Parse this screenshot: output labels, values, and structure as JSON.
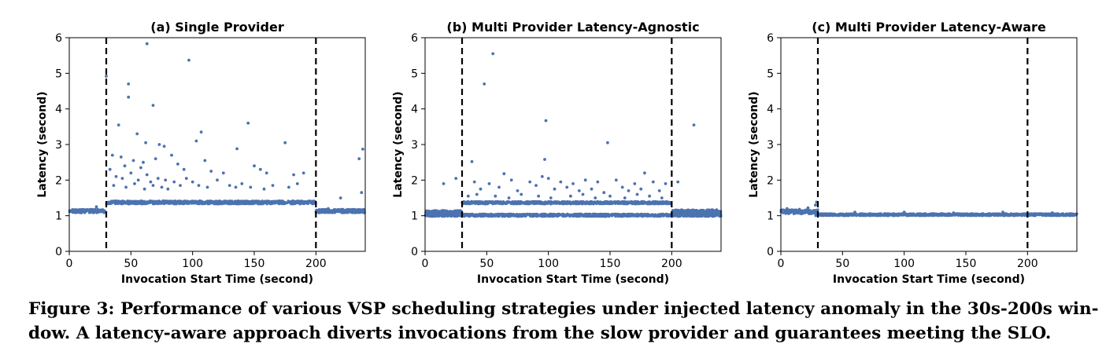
{
  "figure": {
    "caption_line1": "Figure 3: Performance of various VSP scheduling strategies under injected latency anomaly in the 30s-200s win-",
    "caption_line2": "dow. A latency-aware approach diverts invocations from the slow provider and guarantees meeting the SLO."
  },
  "colors": {
    "points": "#4c72b0",
    "marker_lines": "#000000"
  },
  "chart_data": [
    {
      "type": "scatter",
      "title": "(a) Single Provider",
      "xlabel": "Invocation Start Time (second)",
      "ylabel": "Latency (second)",
      "xlim": [
        0,
        240
      ],
      "ylim": [
        0,
        6
      ],
      "xticks": [
        0,
        50,
        100,
        150,
        200
      ],
      "yticks": [
        0,
        1,
        2,
        3,
        4,
        5,
        6
      ],
      "grid": false,
      "vertical_lines": [
        30,
        200
      ],
      "bands": [
        {
          "x": [
            0,
            29
          ],
          "y": [
            1.08,
            1.18
          ]
        },
        {
          "x": [
            30,
            200
          ],
          "y": [
            1.33,
            1.42
          ]
        },
        {
          "x": [
            200,
            240
          ],
          "y": [
            1.08,
            1.18
          ]
        }
      ],
      "points": [
        [
          63,
          5.83
        ],
        [
          97,
          5.37
        ],
        [
          30,
          4.92
        ],
        [
          48,
          4.7
        ],
        [
          48,
          4.33
        ],
        [
          68,
          4.1
        ],
        [
          40,
          3.55
        ],
        [
          107,
          3.35
        ],
        [
          145,
          3.6
        ],
        [
          55,
          3.3
        ],
        [
          103,
          3.1
        ],
        [
          73,
          3.0
        ],
        [
          62,
          3.05
        ],
        [
          77,
          2.95
        ],
        [
          136,
          2.88
        ],
        [
          175,
          3.05
        ],
        [
          238,
          2.87
        ],
        [
          35,
          2.7
        ],
        [
          42,
          2.65
        ],
        [
          52,
          2.55
        ],
        [
          70,
          2.6
        ],
        [
          83,
          2.7
        ],
        [
          110,
          2.55
        ],
        [
          60,
          2.5
        ],
        [
          45,
          2.4
        ],
        [
          58,
          2.35
        ],
        [
          88,
          2.45
        ],
        [
          93,
          2.3
        ],
        [
          115,
          2.25
        ],
        [
          125,
          2.2
        ],
        [
          150,
          2.4
        ],
        [
          155,
          2.3
        ],
        [
          160,
          2.2
        ],
        [
          182,
          2.15
        ],
        [
          190,
          2.2
        ],
        [
          235,
          2.6
        ],
        [
          33,
          2.3
        ],
        [
          38,
          2.1
        ],
        [
          43,
          2.05
        ],
        [
          50,
          2.2
        ],
        [
          56,
          2.0
        ],
        [
          63,
          2.15
        ],
        [
          66,
          1.95
        ],
        [
          72,
          2.05
        ],
        [
          78,
          2.0
        ],
        [
          85,
          1.95
        ],
        [
          95,
          2.05
        ],
        [
          100,
          1.95
        ],
        [
          105,
          1.85
        ],
        [
          120,
          2.0
        ],
        [
          130,
          1.85
        ],
        [
          140,
          1.9
        ],
        [
          147,
          1.8
        ],
        [
          165,
          1.85
        ],
        [
          178,
          1.8
        ],
        [
          185,
          1.9
        ],
        [
          36,
          1.85
        ],
        [
          46,
          1.8
        ],
        [
          53,
          1.9
        ],
        [
          61,
          1.75
        ],
        [
          68,
          1.85
        ],
        [
          75,
          1.8
        ],
        [
          80,
          1.75
        ],
        [
          90,
          1.85
        ],
        [
          112,
          1.8
        ],
        [
          135,
          1.8
        ],
        [
          158,
          1.75
        ],
        [
          220,
          1.5
        ],
        [
          237,
          1.65
        ],
        [
          22,
          1.25
        ],
        [
          210,
          1.2
        ]
      ]
    },
    {
      "type": "scatter",
      "title": "(b) Multi Provider Latency-Agnostic",
      "xlabel": "Invocation Start Time (second)",
      "ylabel": "Latency (second)",
      "xlim": [
        0,
        240
      ],
      "ylim": [
        0,
        6
      ],
      "xticks": [
        0,
        50,
        100,
        150,
        200
      ],
      "yticks": [
        0,
        1,
        2,
        3,
        4,
        5,
        6
      ],
      "grid": false,
      "vertical_lines": [
        30,
        200
      ],
      "bands": [
        {
          "x": [
            0,
            30
          ],
          "y": [
            1.05,
            1.15
          ]
        },
        {
          "x": [
            0,
            240
          ],
          "y": [
            0.98,
            1.05
          ]
        },
        {
          "x": [
            30,
            200
          ],
          "y": [
            1.33,
            1.4
          ]
        },
        {
          "x": [
            200,
            240
          ],
          "y": [
            1.07,
            1.17
          ]
        }
      ],
      "points": [
        [
          55,
          5.55
        ],
        [
          48,
          4.7
        ],
        [
          98,
          3.67
        ],
        [
          148,
          3.05
        ],
        [
          218,
          3.55
        ],
        [
          38,
          2.52
        ],
        [
          97,
          2.58
        ],
        [
          64,
          2.18
        ],
        [
          25,
          2.05
        ],
        [
          40,
          1.95
        ],
        [
          52,
          1.9
        ],
        [
          70,
          2.0
        ],
        [
          85,
          1.95
        ],
        [
          95,
          2.1
        ],
        [
          100,
          2.05
        ],
        [
          110,
          1.95
        ],
        [
          120,
          1.9
        ],
        [
          130,
          2.0
        ],
        [
          140,
          1.95
        ],
        [
          155,
          2.0
        ],
        [
          170,
          1.9
        ],
        [
          178,
          2.2
        ],
        [
          185,
          1.95
        ],
        [
          195,
          1.9
        ],
        [
          205,
          1.95
        ],
        [
          15,
          1.9
        ],
        [
          45,
          1.75
        ],
        [
          60,
          1.8
        ],
        [
          75,
          1.7
        ],
        [
          90,
          1.85
        ],
        [
          105,
          1.75
        ],
        [
          115,
          1.8
        ],
        [
          125,
          1.7
        ],
        [
          135,
          1.75
        ],
        [
          145,
          1.65
        ],
        [
          160,
          1.8
        ],
        [
          165,
          1.7
        ],
        [
          175,
          1.75
        ],
        [
          190,
          1.7
        ],
        [
          35,
          1.55
        ],
        [
          42,
          1.6
        ],
        [
          57,
          1.55
        ],
        [
          68,
          1.5
        ],
        [
          78,
          1.6
        ],
        [
          92,
          1.55
        ],
        [
          102,
          1.5
        ],
        [
          118,
          1.55
        ],
        [
          128,
          1.6
        ],
        [
          138,
          1.5
        ],
        [
          150,
          1.55
        ],
        [
          162,
          1.5
        ],
        [
          172,
          1.6
        ],
        [
          182,
          1.55
        ],
        [
          192,
          1.5
        ]
      ]
    },
    {
      "type": "scatter",
      "title": "(c) Multi Provider Latency-Aware",
      "xlabel": "Invocation Start Time (second)",
      "ylabel": "Latency (second)",
      "xlim": [
        0,
        240
      ],
      "ylim": [
        0,
        6
      ],
      "xticks": [
        0,
        50,
        100,
        150,
        200
      ],
      "yticks": [
        0,
        1,
        2,
        3,
        4,
        5,
        6
      ],
      "grid": false,
      "vertical_lines": [
        30,
        200
      ],
      "bands": [
        {
          "x": [
            0,
            30
          ],
          "y": [
            1.05,
            1.17
          ]
        },
        {
          "x": [
            28,
            240
          ],
          "y": [
            1.0,
            1.06
          ]
        }
      ],
      "points": [
        [
          29,
          1.38
        ],
        [
          28,
          1.3
        ],
        [
          5,
          1.2
        ],
        [
          15,
          1.18
        ],
        [
          22,
          1.22
        ],
        [
          60,
          1.1
        ],
        [
          100,
          1.1
        ],
        [
          140,
          1.08
        ],
        [
          180,
          1.1
        ],
        [
          220,
          1.08
        ]
      ]
    }
  ]
}
